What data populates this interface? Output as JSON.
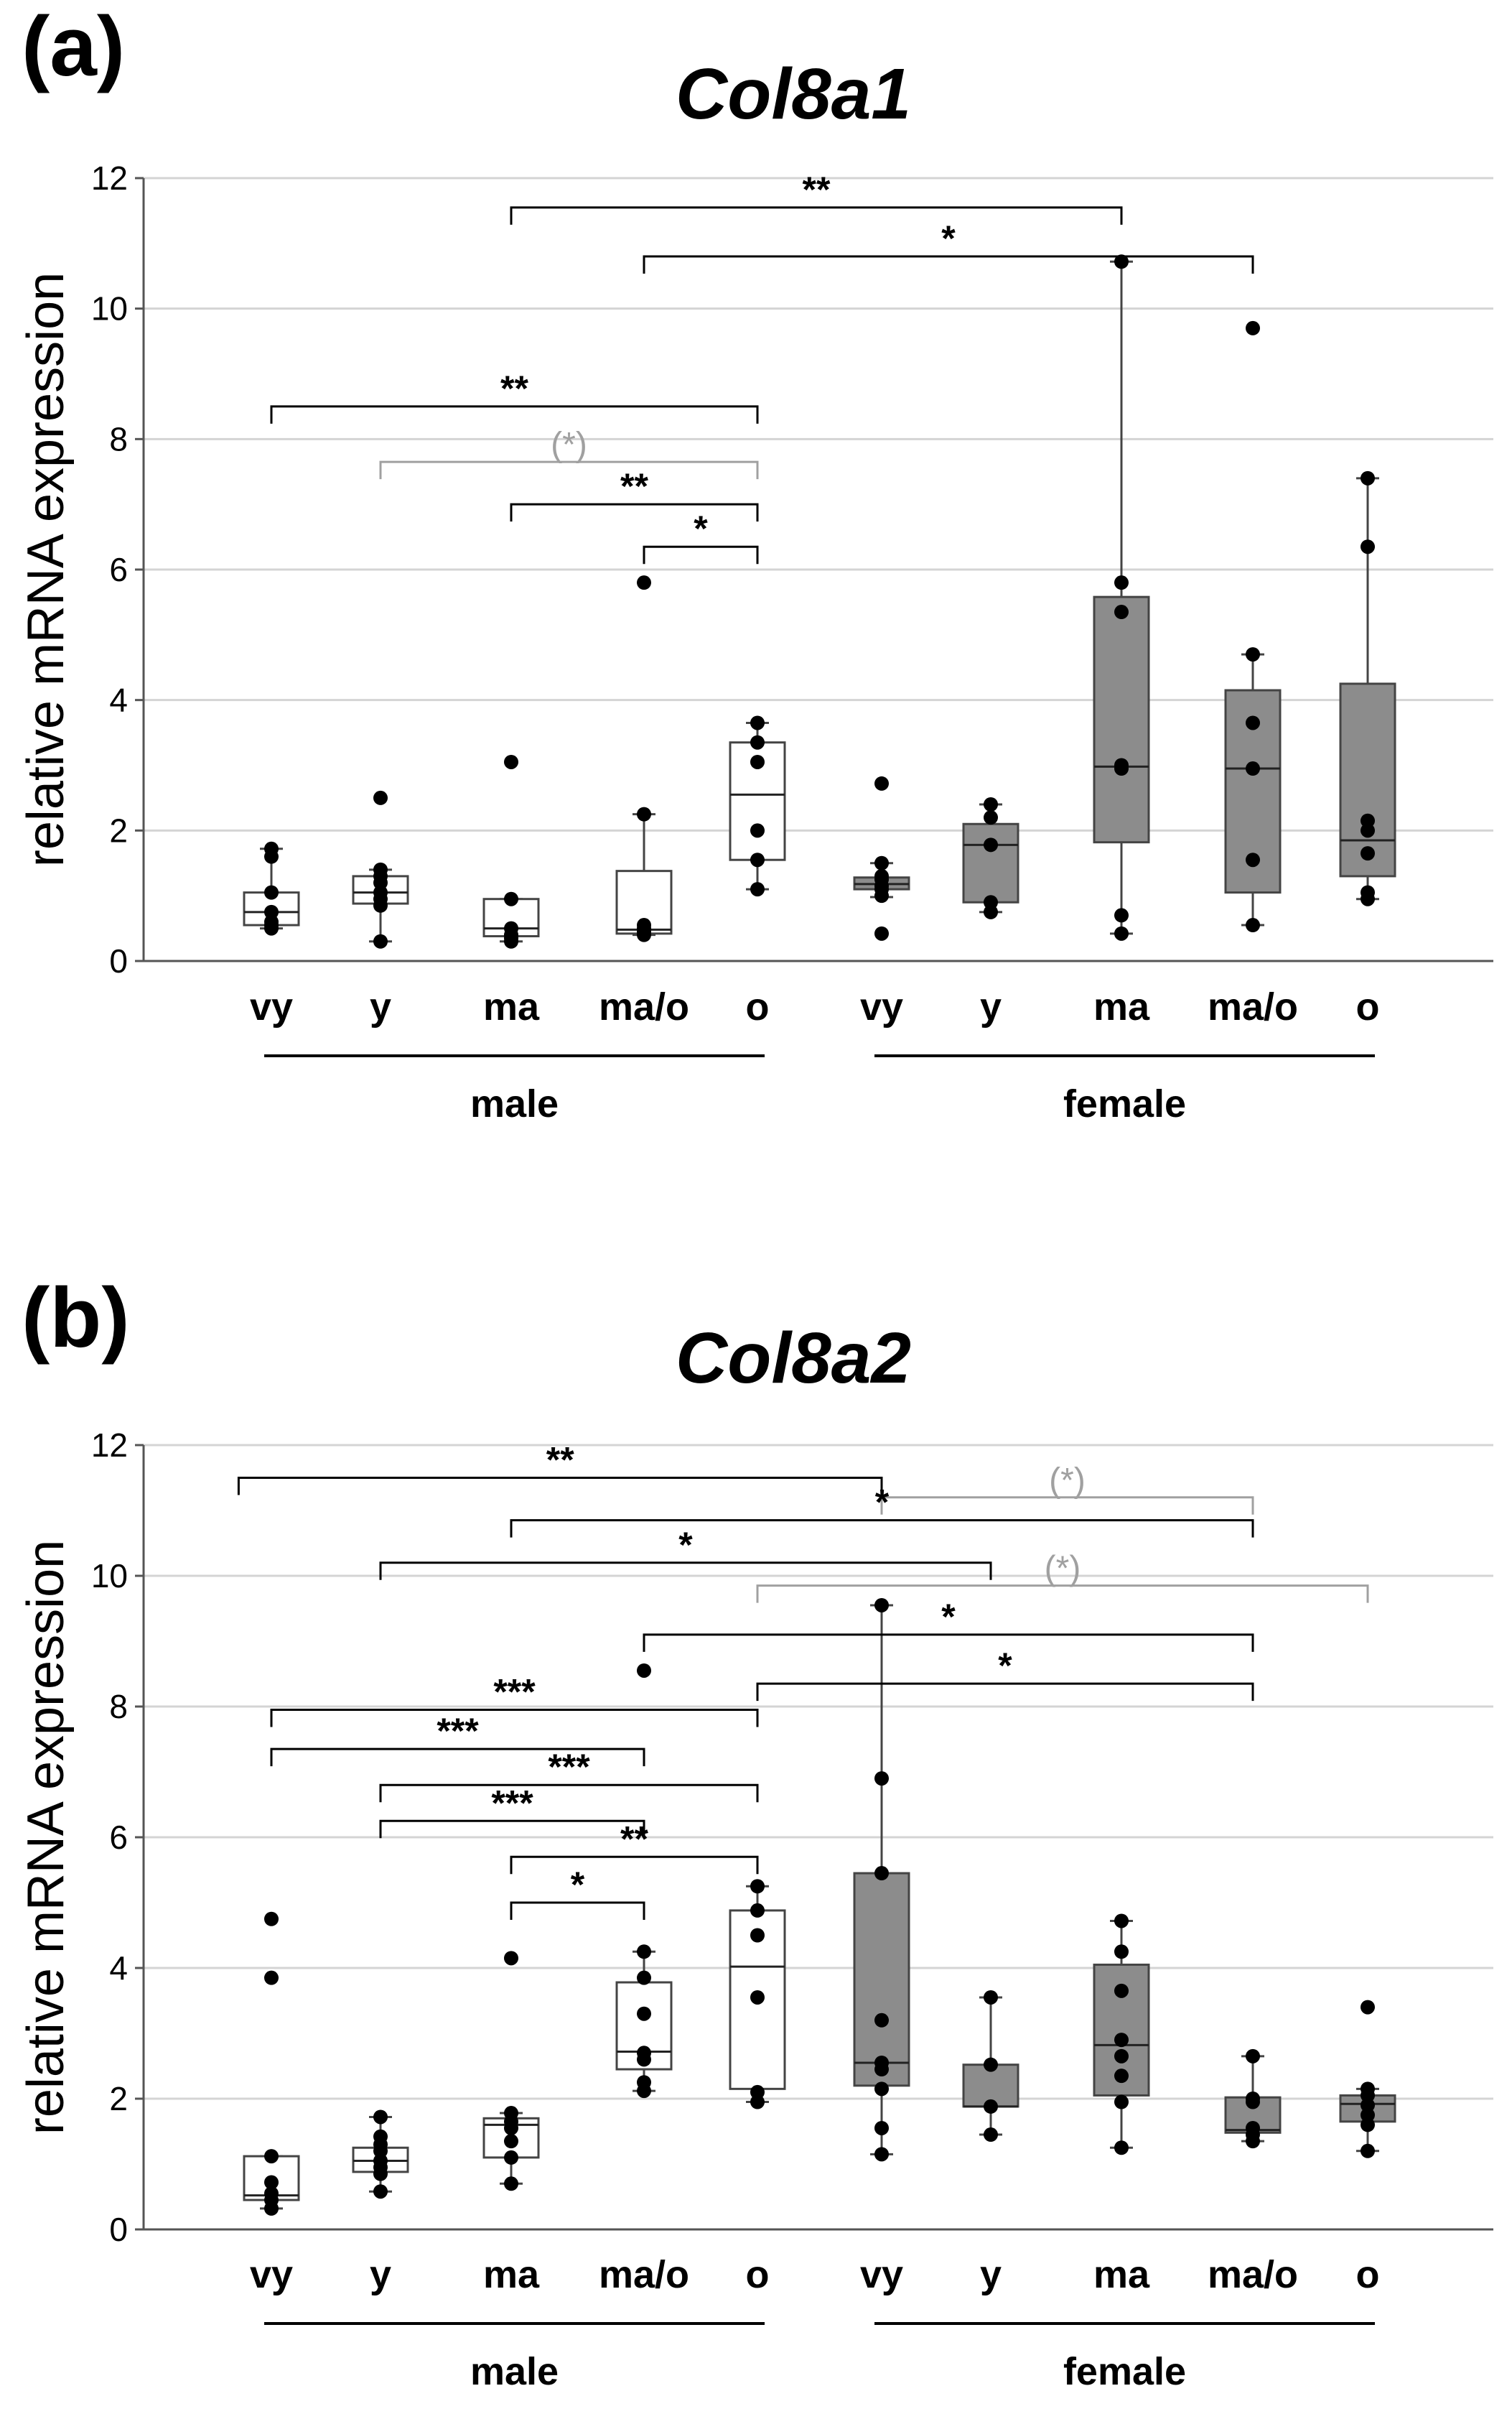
{
  "chart_data": [
    {
      "type": "boxplot",
      "panel_label": "(a)",
      "title": "Col8a1",
      "ylabel": "relative mRNA expression",
      "ylim": [
        0,
        12
      ],
      "yticks": [
        0,
        2,
        4,
        6,
        8,
        10,
        12
      ],
      "grid": true,
      "categories": [
        "vy",
        "y",
        "ma",
        "ma/o",
        "o",
        "vy",
        "y",
        "ma",
        "ma/o",
        "o"
      ],
      "groups": [
        {
          "label": "male",
          "from": 0,
          "to": 4
        },
        {
          "label": "female",
          "from": 5,
          "to": 9
        }
      ],
      "colors": {
        "male": "#ffffff",
        "female": "#8c8c8c",
        "sig": "#000000",
        "trend": "#a0a0a0"
      },
      "boxes": [
        {
          "group": "male",
          "label": "vy",
          "whisker_low": 0.5,
          "q1": 0.55,
          "median": 0.75,
          "q3": 1.05,
          "whisker_high": 1.72,
          "points": [
            0.5,
            0.55,
            0.6,
            0.75,
            1.05,
            1.6,
            1.72
          ]
        },
        {
          "group": "male",
          "label": "y",
          "whisker_low": 0.3,
          "q1": 0.88,
          "median": 1.05,
          "q3": 1.3,
          "whisker_high": 1.4,
          "points": [
            0.3,
            0.85,
            0.95,
            1.05,
            1.2,
            1.3,
            1.4,
            2.5
          ]
        },
        {
          "group": "male",
          "label": "ma",
          "whisker_low": 0.3,
          "q1": 0.38,
          "median": 0.5,
          "q3": 0.95,
          "whisker_high": 0.95,
          "points": [
            0.3,
            0.35,
            0.4,
            0.5,
            0.95,
            3.05
          ]
        },
        {
          "group": "male",
          "label": "ma/o",
          "whisker_low": 0.4,
          "q1": 0.42,
          "median": 0.48,
          "q3": 1.38,
          "whisker_high": 2.25,
          "points": [
            0.4,
            0.45,
            0.5,
            0.55,
            2.25,
            5.8
          ]
        },
        {
          "group": "male",
          "label": "o",
          "whisker_low": 1.1,
          "q1": 1.55,
          "median": 2.55,
          "q3": 3.35,
          "whisker_high": 3.65,
          "points": [
            1.1,
            1.55,
            2.0,
            3.05,
            3.35,
            3.65
          ]
        },
        {
          "group": "female",
          "label": "vy",
          "whisker_low": 0.98,
          "q1": 1.1,
          "median": 1.18,
          "q3": 1.28,
          "whisker_high": 1.5,
          "points": [
            0.42,
            1.0,
            1.1,
            1.15,
            1.25,
            1.3,
            1.5,
            2.72
          ]
        },
        {
          "group": "female",
          "label": "y",
          "whisker_low": 0.75,
          "q1": 0.9,
          "median": 1.78,
          "q3": 2.1,
          "whisker_high": 2.4,
          "points": [
            0.75,
            0.9,
            1.78,
            2.2,
            2.4
          ]
        },
        {
          "group": "female",
          "label": "ma",
          "whisker_low": 0.42,
          "q1": 1.82,
          "median": 2.98,
          "q3": 5.58,
          "whisker_high": 10.72,
          "points": [
            0.42,
            0.7,
            2.95,
            3.0,
            5.35,
            5.8,
            10.72
          ]
        },
        {
          "group": "female",
          "label": "ma/o",
          "whisker_low": 0.55,
          "q1": 1.05,
          "median": 2.95,
          "q3": 4.15,
          "whisker_high": 4.7,
          "points": [
            0.55,
            1.55,
            2.95,
            3.65,
            4.7,
            9.7
          ]
        },
        {
          "group": "female",
          "label": "o",
          "whisker_low": 0.95,
          "q1": 1.3,
          "median": 1.85,
          "q3": 4.25,
          "whisker_high": 7.4,
          "points": [
            0.95,
            1.05,
            1.65,
            2.0,
            2.15,
            6.35,
            7.4
          ]
        }
      ],
      "brackets": [
        {
          "from": 2,
          "to": 7,
          "y": 11.55,
          "label": "**",
          "style": "sig"
        },
        {
          "from": 3,
          "to": 8,
          "y": 10.8,
          "label": "*",
          "style": "sig"
        },
        {
          "from": 0,
          "to": 4,
          "y": 8.5,
          "label": "**",
          "style": "sig"
        },
        {
          "from": 1,
          "to": 4,
          "y": 7.65,
          "label": "(*)",
          "style": "trend"
        },
        {
          "from": 2,
          "to": 4,
          "y": 7.0,
          "label": "**",
          "style": "sig"
        },
        {
          "from": 3,
          "to": 4,
          "y": 6.35,
          "label": "*",
          "style": "sig"
        }
      ]
    },
    {
      "type": "boxplot",
      "panel_label": "(b)",
      "title": "Col8a2",
      "ylabel": "relative mRNA expression",
      "ylim": [
        0,
        12
      ],
      "yticks": [
        0,
        2,
        4,
        6,
        8,
        10,
        12
      ],
      "grid": true,
      "categories": [
        "vy",
        "y",
        "ma",
        "ma/o",
        "o",
        "vy",
        "y",
        "ma",
        "ma/o",
        "o"
      ],
      "groups": [
        {
          "label": "male",
          "from": 0,
          "to": 4
        },
        {
          "label": "female",
          "from": 5,
          "to": 9
        }
      ],
      "colors": {
        "male": "#ffffff",
        "female": "#8c8c8c",
        "sig": "#000000",
        "trend": "#a0a0a0"
      },
      "boxes": [
        {
          "group": "male",
          "label": "vy",
          "whisker_low": 0.32,
          "q1": 0.45,
          "median": 0.52,
          "q3": 1.12,
          "whisker_high": 1.12,
          "points": [
            0.32,
            0.45,
            0.55,
            0.72,
            1.12,
            3.85,
            4.75
          ]
        },
        {
          "group": "male",
          "label": "y",
          "whisker_low": 0.58,
          "q1": 0.88,
          "median": 1.05,
          "q3": 1.25,
          "whisker_high": 1.72,
          "points": [
            0.58,
            0.85,
            0.95,
            1.05,
            1.2,
            1.3,
            1.42,
            1.72
          ]
        },
        {
          "group": "male",
          "label": "ma",
          "whisker_low": 0.7,
          "q1": 1.1,
          "median": 1.6,
          "q3": 1.7,
          "whisker_high": 1.78,
          "points": [
            0.7,
            1.1,
            1.35,
            1.55,
            1.65,
            1.78,
            4.15
          ]
        },
        {
          "group": "male",
          "label": "ma/o",
          "whisker_low": 2.12,
          "q1": 2.45,
          "median": 2.72,
          "q3": 3.78,
          "whisker_high": 4.25,
          "points": [
            2.12,
            2.25,
            2.6,
            2.7,
            3.3,
            3.85,
            4.25,
            8.55
          ]
        },
        {
          "group": "male",
          "label": "o",
          "whisker_low": 1.95,
          "q1": 2.15,
          "median": 4.02,
          "q3": 4.88,
          "whisker_high": 5.25,
          "points": [
            1.95,
            2.1,
            3.55,
            4.5,
            4.88,
            5.25
          ]
        },
        {
          "group": "female",
          "label": "vy",
          "whisker_low": 1.15,
          "q1": 2.2,
          "median": 2.55,
          "q3": 5.45,
          "whisker_high": 9.55,
          "points": [
            1.15,
            1.55,
            2.15,
            2.45,
            2.55,
            3.2,
            5.45,
            6.9,
            9.55
          ]
        },
        {
          "group": "female",
          "label": "y",
          "whisker_low": 1.45,
          "q1": 1.88,
          "median": 1.88,
          "q3": 2.52,
          "whisker_high": 3.55,
          "points": [
            1.45,
            1.88,
            2.52,
            3.55
          ]
        },
        {
          "group": "female",
          "label": "ma",
          "whisker_low": 1.25,
          "q1": 2.05,
          "median": 2.82,
          "q3": 4.05,
          "whisker_high": 4.72,
          "points": [
            1.25,
            1.95,
            2.35,
            2.65,
            2.9,
            3.65,
            4.25,
            4.72
          ]
        },
        {
          "group": "female",
          "label": "ma/o",
          "whisker_low": 1.35,
          "q1": 1.48,
          "median": 1.52,
          "q3": 2.02,
          "whisker_high": 2.65,
          "points": [
            1.35,
            1.45,
            1.55,
            1.95,
            2.0,
            2.65
          ]
        },
        {
          "group": "female",
          "label": "o",
          "whisker_low": 1.2,
          "q1": 1.65,
          "median": 1.92,
          "q3": 2.05,
          "whisker_high": 2.15,
          "points": [
            1.2,
            1.6,
            1.75,
            1.9,
            2.05,
            2.15,
            3.4
          ]
        }
      ],
      "brackets": [
        {
          "from": -0.3,
          "to": 5,
          "y": 11.5,
          "label": "**",
          "style": "sig"
        },
        {
          "from": 5,
          "to": 8,
          "y": 11.2,
          "label": "(*)",
          "style": "trend"
        },
        {
          "from": 2,
          "to": 8,
          "y": 10.85,
          "label": "*",
          "style": "sig"
        },
        {
          "from": 1,
          "to": 6,
          "y": 10.2,
          "label": "*",
          "style": "sig"
        },
        {
          "from": 4,
          "to": 9,
          "y": 9.85,
          "label": "(*)",
          "style": "trend"
        },
        {
          "from": 3,
          "to": 8,
          "y": 9.1,
          "label": "*",
          "style": "sig"
        },
        {
          "from": 4,
          "to": 8,
          "y": 8.35,
          "label": "*",
          "style": "sig"
        },
        {
          "from": 0,
          "to": 4,
          "y": 7.95,
          "label": "***",
          "style": "sig"
        },
        {
          "from": 0,
          "to": 3,
          "y": 7.35,
          "label": "***",
          "style": "sig"
        },
        {
          "from": 1,
          "to": 4,
          "y": 6.8,
          "label": "***",
          "style": "sig"
        },
        {
          "from": 1,
          "to": 3,
          "y": 6.25,
          "label": "***",
          "style": "sig"
        },
        {
          "from": 2,
          "to": 4,
          "y": 5.7,
          "label": "**",
          "style": "sig"
        },
        {
          "from": 2,
          "to": 3,
          "y": 5.0,
          "label": "*",
          "style": "sig"
        }
      ]
    }
  ]
}
